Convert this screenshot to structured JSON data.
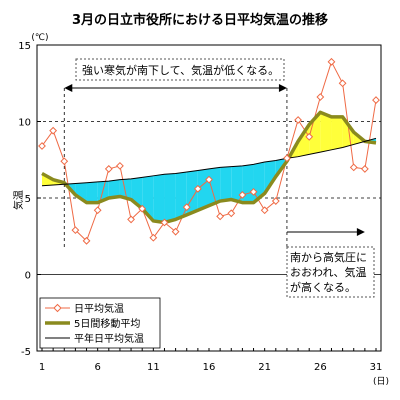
{
  "chart_data": {
    "type": "line",
    "title": "3月の日立市役所における日平均気温の推移",
    "ylabel": "気温",
    "y_unit": "(℃)",
    "x_unit": "(日)",
    "xlim": [
      1,
      31
    ],
    "ylim": [
      -5,
      15
    ],
    "x_ticks": [
      1,
      6,
      11,
      16,
      21,
      26,
      31
    ],
    "y_ticks": [
      -5,
      0,
      5,
      10,
      15
    ],
    "y_dashed_gridlines": [
      5,
      10
    ],
    "legend_position": "bottom-left",
    "x": [
      1,
      2,
      3,
      4,
      5,
      6,
      7,
      8,
      9,
      10,
      11,
      12,
      13,
      14,
      15,
      16,
      17,
      18,
      19,
      20,
      21,
      22,
      23,
      24,
      25,
      26,
      27,
      28,
      29,
      30,
      31
    ],
    "series": [
      {
        "name": "日平均気温",
        "style": "line-with-diamond-markers",
        "color": "#ef6a45",
        "marker_fill": "#ffffff",
        "values": [
          8.4,
          9.4,
          7.4,
          2.9,
          2.2,
          4.2,
          6.9,
          7.1,
          3.6,
          4.3,
          2.4,
          3.4,
          2.8,
          4.4,
          5.6,
          6.2,
          3.8,
          4.0,
          5.2,
          5.4,
          4.2,
          4.8,
          7.6,
          10.1,
          9.0,
          11.6,
          13.9,
          12.5,
          7.0,
          6.9,
          11.4
        ]
      },
      {
        "name": "5日間移動平均",
        "style": "thick-line",
        "color": "#8a8a1e",
        "values": [
          6.6,
          6.2,
          6.0,
          5.2,
          4.7,
          4.7,
          5.0,
          5.1,
          4.9,
          4.3,
          3.5,
          3.4,
          3.6,
          3.9,
          4.2,
          4.5,
          4.8,
          4.9,
          4.7,
          4.7,
          5.3,
          6.4,
          7.4,
          8.7,
          9.8,
          10.6,
          10.3,
          10.3,
          9.3,
          8.7,
          8.6
        ]
      },
      {
        "name": "平年日平均気温",
        "style": "thin-line",
        "color": "#000000",
        "values": [
          5.8,
          5.85,
          5.9,
          5.95,
          6.0,
          6.05,
          6.1,
          6.2,
          6.25,
          6.35,
          6.45,
          6.55,
          6.6,
          6.7,
          6.8,
          6.9,
          7.0,
          7.05,
          7.1,
          7.2,
          7.35,
          7.45,
          7.6,
          7.7,
          7.85,
          8.0,
          8.15,
          8.3,
          8.5,
          8.7,
          8.9
        ]
      }
    ],
    "fill_below_normal_color": "#22d6f0",
    "fill_above_normal_color": "#ffff3a",
    "annotations": [
      {
        "text": "強い寒気が南下して、気温が低くなる。",
        "arrow": "double-headed",
        "from_day": 3,
        "to_day": 23
      },
      {
        "text_lines": [
          "南から高気圧に",
          "おおわれ、気温",
          "が高くなる。"
        ],
        "arrow": "right",
        "from_day": 23,
        "to_day": 30
      }
    ],
    "period_markers_day": [
      3,
      23
    ]
  }
}
